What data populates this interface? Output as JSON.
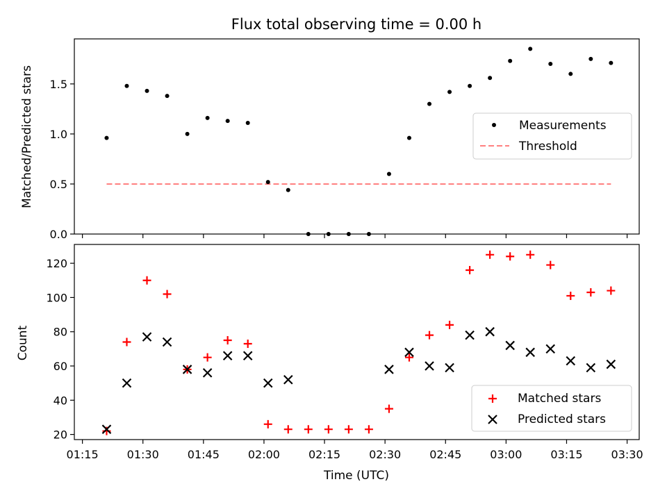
{
  "chart_data": [
    {
      "type": "scatter",
      "title": "Flux total observing time = 0.00 h",
      "xlabel": "",
      "ylabel": "Matched/Predicted stars",
      "ylim": [
        0,
        1.95
      ],
      "yticks": [
        "0.0",
        "0.5",
        "1.0",
        "1.5"
      ],
      "x": [
        "01:21",
        "01:26",
        "01:31",
        "01:36",
        "01:41",
        "01:46",
        "01:51",
        "01:56",
        "02:01",
        "02:06",
        "02:11",
        "02:16",
        "02:21",
        "02:26",
        "02:31",
        "02:36",
        "02:41",
        "02:46",
        "02:51",
        "02:56",
        "03:01",
        "03:06",
        "03:11",
        "03:16",
        "03:21",
        "03:26"
      ],
      "series": [
        {
          "name": "Measurements",
          "marker": "dot",
          "color": "#000000",
          "values": [
            0.96,
            1.48,
            1.43,
            1.38,
            1.0,
            1.16,
            1.13,
            1.11,
            0.52,
            0.44,
            0.0,
            0.0,
            0.0,
            0.0,
            0.6,
            0.96,
            1.3,
            1.42,
            1.48,
            1.56,
            1.73,
            1.85,
            1.7,
            1.6,
            1.75,
            1.71
          ]
        },
        {
          "name": "Threshold",
          "style": "dashed-line",
          "color": "#ff7f7f",
          "x": [
            "01:21",
            "03:26"
          ],
          "values": [
            0.5,
            0.5
          ]
        }
      ],
      "legend": "center-right"
    },
    {
      "type": "scatter",
      "title": "",
      "xlabel": "Time (UTC)",
      "ylabel": "Count",
      "ylim": [
        17,
        131
      ],
      "yticks": [
        "20",
        "40",
        "60",
        "80",
        "100",
        "120"
      ],
      "xticks": [
        "01:15",
        "01:30",
        "01:45",
        "02:00",
        "02:15",
        "02:30",
        "02:45",
        "03:00",
        "03:15",
        "03:30"
      ],
      "x": [
        "01:21",
        "01:26",
        "01:31",
        "01:36",
        "01:41",
        "01:46",
        "01:51",
        "01:56",
        "02:01",
        "02:06",
        "02:11",
        "02:16",
        "02:21",
        "02:26",
        "02:31",
        "02:36",
        "02:41",
        "02:46",
        "02:51",
        "02:56",
        "03:01",
        "03:06",
        "03:11",
        "03:16",
        "03:21",
        "03:26"
      ],
      "series": [
        {
          "name": "Matched stars",
          "marker": "plus",
          "color": "#ff0000",
          "values": [
            22,
            74,
            110,
            102,
            58,
            65,
            75,
            73,
            26,
            23,
            23,
            23,
            23,
            23,
            35,
            65,
            78,
            84,
            116,
            125,
            124,
            125,
            119,
            101,
            103,
            104
          ]
        },
        {
          "name": "Predicted stars",
          "marker": "x",
          "color": "#000000",
          "values": [
            23,
            50,
            77,
            74,
            58,
            56,
            66,
            66,
            50,
            52,
            null,
            null,
            null,
            null,
            58,
            68,
            60,
            59,
            78,
            80,
            72,
            68,
            70,
            63,
            59,
            61
          ]
        }
      ],
      "legend": "lower-right"
    }
  ]
}
